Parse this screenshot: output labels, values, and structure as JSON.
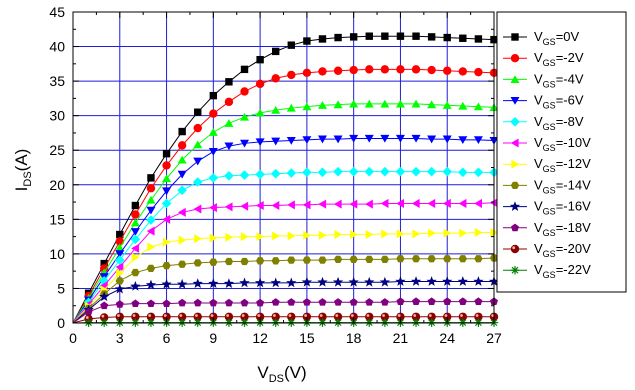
{
  "chart_data": {
    "type": "line",
    "xlabel": {
      "main": "V",
      "sub": "DS",
      "unit": "(V)"
    },
    "ylabel": {
      "main": "I",
      "sub": "DS",
      "unit": "(A)"
    },
    "xlim": [
      0,
      27
    ],
    "ylim": [
      0,
      45
    ],
    "xticks": [
      0,
      3,
      6,
      9,
      12,
      15,
      18,
      21,
      24,
      27
    ],
    "yticks": [
      0,
      5,
      10,
      15,
      20,
      25,
      30,
      35,
      40,
      45
    ],
    "grid": true,
    "legend_position": "right",
    "x": [
      0,
      1,
      2,
      3,
      4,
      5,
      6,
      7,
      8,
      9,
      10,
      11,
      12,
      13,
      14,
      15,
      16,
      17,
      18,
      19,
      20,
      21,
      22,
      23,
      24,
      25,
      26,
      27
    ],
    "series": [
      {
        "name": "V_GS=0V",
        "label_main": "V",
        "label_sub": "GS",
        "label_rest": "=0V",
        "color": "#000000",
        "marker": "square",
        "values": [
          0,
          4.3,
          8.6,
          12.8,
          17.0,
          21.0,
          24.5,
          27.7,
          30.5,
          32.9,
          34.9,
          36.7,
          38.1,
          39.3,
          40.2,
          40.8,
          41.1,
          41.3,
          41.4,
          41.5,
          41.5,
          41.5,
          41.5,
          41.4,
          41.3,
          41.2,
          41.1,
          41.0
        ]
      },
      {
        "name": "V_GS=-2V",
        "label_main": "V",
        "label_sub": "GS",
        "label_rest": "=-2V",
        "color": "#ff0000",
        "marker": "circle",
        "values": [
          0,
          3.9,
          7.9,
          11.8,
          15.7,
          19.5,
          22.8,
          25.7,
          28.2,
          30.3,
          32.0,
          33.5,
          34.6,
          35.4,
          35.9,
          36.2,
          36.4,
          36.5,
          36.6,
          36.7,
          36.7,
          36.7,
          36.7,
          36.6,
          36.5,
          36.4,
          36.3,
          36.2
        ]
      },
      {
        "name": "V_GS=-4V",
        "label_main": "V",
        "label_sub": "GS",
        "label_rest": "=-4V",
        "color": "#00ff00",
        "marker": "triangle-up",
        "values": [
          0,
          3.6,
          7.3,
          10.9,
          14.5,
          17.8,
          20.9,
          23.6,
          25.8,
          27.6,
          28.9,
          29.8,
          30.4,
          30.8,
          31.1,
          31.3,
          31.5,
          31.6,
          31.7,
          31.7,
          31.7,
          31.7,
          31.7,
          31.6,
          31.5,
          31.4,
          31.3,
          31.2
        ]
      },
      {
        "name": "V_GS=-6V",
        "label_main": "V",
        "label_sub": "GS",
        "label_rest": "=-6V",
        "color": "#0000ff",
        "marker": "triangle-down",
        "values": [
          0,
          3.3,
          6.7,
          10.0,
          13.2,
          16.3,
          19.1,
          21.5,
          23.4,
          24.8,
          25.6,
          26.0,
          26.2,
          26.3,
          26.4,
          26.5,
          26.6,
          26.6,
          26.7,
          26.7,
          26.7,
          26.7,
          26.7,
          26.6,
          26.6,
          26.5,
          26.5,
          26.4
        ]
      },
      {
        "name": "V_GS=-8V",
        "label_main": "V",
        "label_sub": "GS",
        "label_rest": "=-8V",
        "color": "#00ffff",
        "marker": "diamond",
        "values": [
          0,
          3.0,
          6.1,
          9.1,
          12.1,
          14.9,
          17.3,
          19.2,
          20.4,
          21.0,
          21.3,
          21.4,
          21.5,
          21.6,
          21.7,
          21.8,
          21.8,
          21.9,
          21.9,
          21.9,
          21.9,
          21.9,
          21.9,
          21.9,
          21.9,
          21.8,
          21.8,
          21.8
        ]
      },
      {
        "name": "V_GS=-10V",
        "label_main": "V",
        "label_sub": "GS",
        "label_rest": "=-10V",
        "color": "#ff00ff",
        "marker": "triangle-left",
        "values": [
          0,
          2.7,
          5.4,
          8.1,
          10.8,
          13.3,
          15.0,
          16.0,
          16.5,
          16.7,
          16.8,
          16.9,
          17.0,
          17.0,
          17.1,
          17.1,
          17.2,
          17.2,
          17.2,
          17.2,
          17.3,
          17.3,
          17.3,
          17.3,
          17.3,
          17.3,
          17.3,
          17.4
        ]
      },
      {
        "name": "V_GS=-12V",
        "label_main": "V",
        "label_sub": "GS",
        "label_rest": "=-12V",
        "color": "#ffff00",
        "marker": "triangle-right",
        "values": [
          0,
          2.4,
          4.8,
          7.2,
          9.5,
          11.0,
          11.7,
          12.0,
          12.2,
          12.3,
          12.4,
          12.5,
          12.5,
          12.6,
          12.6,
          12.7,
          12.7,
          12.8,
          12.8,
          12.8,
          12.9,
          12.9,
          12.9,
          13.0,
          13.0,
          13.0,
          13.1,
          13.1
        ]
      },
      {
        "name": "V_GS=-14V",
        "label_main": "V",
        "label_sub": "GS",
        "label_rest": "=-14V",
        "color": "#808000",
        "marker": "hexagon",
        "values": [
          0,
          2.1,
          4.2,
          6.1,
          7.3,
          7.9,
          8.3,
          8.5,
          8.7,
          8.8,
          8.9,
          8.9,
          9.0,
          9.0,
          9.1,
          9.1,
          9.1,
          9.2,
          9.2,
          9.2,
          9.2,
          9.3,
          9.3,
          9.3,
          9.3,
          9.3,
          9.3,
          9.4
        ]
      },
      {
        "name": "V_GS=-16V",
        "label_main": "V",
        "label_sub": "GS",
        "label_rest": "=-16V",
        "color": "#000080",
        "marker": "star",
        "values": [
          0,
          1.9,
          3.8,
          4.9,
          5.3,
          5.5,
          5.6,
          5.6,
          5.7,
          5.7,
          5.7,
          5.8,
          5.8,
          5.8,
          5.8,
          5.9,
          5.9,
          5.9,
          5.9,
          5.9,
          5.9,
          6.0,
          6.0,
          6.0,
          6.0,
          6.0,
          6.0,
          6.0
        ]
      },
      {
        "name": "V_GS=-18V",
        "label_main": "V",
        "label_sub": "GS",
        "label_rest": "=-18V",
        "color": "#800080",
        "marker": "pentagon",
        "values": [
          0,
          1.6,
          2.5,
          2.7,
          2.8,
          2.8,
          2.8,
          2.9,
          2.9,
          2.9,
          2.9,
          2.9,
          2.9,
          3.0,
          3.0,
          3.0,
          3.0,
          3.0,
          3.0,
          3.0,
          3.0,
          3.1,
          3.1,
          3.1,
          3.1,
          3.1,
          3.1,
          3.1
        ]
      },
      {
        "name": "V_GS=-20V",
        "label_main": "V",
        "label_sub": "GS",
        "label_rest": "=-20V",
        "color": "#8b0000",
        "marker": "sphere",
        "values": [
          0,
          0.6,
          0.8,
          0.9,
          0.9,
          0.9,
          0.9,
          0.9,
          0.9,
          0.9,
          0.9,
          0.9,
          0.9,
          0.9,
          0.9,
          0.9,
          0.9,
          0.9,
          0.9,
          0.9,
          0.9,
          0.9,
          0.9,
          0.9,
          0.9,
          0.9,
          0.9,
          0.9
        ]
      },
      {
        "name": "V_GS=-22V",
        "label_main": "V",
        "label_sub": "GS",
        "label_rest": "=-22V",
        "color": "#008000",
        "marker": "asterisk",
        "values": [
          0,
          0.05,
          0.05,
          0.05,
          0.05,
          0.05,
          0.05,
          0.05,
          0.05,
          0.05,
          0.05,
          0.05,
          0.05,
          0.05,
          0.05,
          0.05,
          0.05,
          0.05,
          0.05,
          0.05,
          0.05,
          0.05,
          0.05,
          0.05,
          0.05,
          0.05,
          0.05,
          0.05
        ]
      }
    ]
  }
}
